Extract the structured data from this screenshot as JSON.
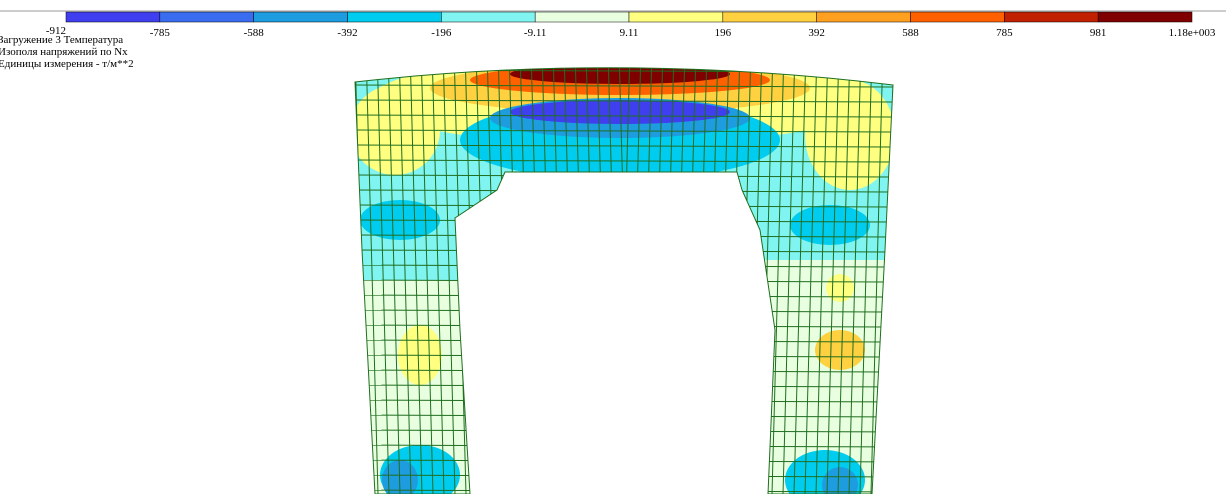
{
  "legend": {
    "labels": [
      "-912",
      "-785",
      "-588",
      "-392",
      "-196",
      "-9.11",
      "9.11",
      "196",
      "392",
      "588",
      "785",
      "981",
      "1.18e+003"
    ],
    "colors": [
      "#3f3ff0",
      "#3a6cf0",
      "#1e9ce0",
      "#00ccf0",
      "#80f4f0",
      "#e8ffe0",
      "#ffff80",
      "#ffd040",
      "#ffa020",
      "#ff6000",
      "#c02000",
      "#800000"
    ]
  },
  "info": {
    "lines": [
      "Загружение 3 Температура",
      "Изополя напряжений по Nx",
      "Единицы измерения - т/м**2"
    ]
  }
}
